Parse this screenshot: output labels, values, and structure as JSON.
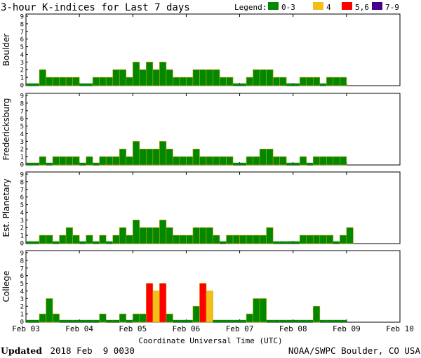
{
  "chart_data": {
    "type": "bar",
    "title": "3-hour K-indices for Last 7 days",
    "legend": {
      "label": "Legend:",
      "items": [
        {
          "label": "0-3",
          "color": "#008800"
        },
        {
          "label": "4",
          "color": "#f4be18"
        },
        {
          "label": "5,6",
          "color": "#ff0000"
        },
        {
          "label": "7-9",
          "color": "#440088"
        }
      ]
    },
    "ytick_labels": [
      "0",
      "1",
      "2",
      "3",
      "4",
      "5",
      "6",
      "7",
      "8",
      "9"
    ],
    "ylim": [
      0,
      9
    ],
    "xlabel": "Coordinate Universal Time (UTC)",
    "xtick_labels": [
      "Feb 03",
      "Feb 04",
      "Feb 05",
      "Feb 06",
      "Feb 07",
      "Feb 08",
      "Feb 09",
      "Feb 10"
    ],
    "intervals_per_day": 8,
    "series": [
      {
        "name": "Boulder",
        "values": [
          0,
          0,
          2,
          1,
          1,
          1,
          1,
          1,
          0,
          0,
          1,
          1,
          1,
          2,
          2,
          1,
          3,
          2,
          3,
          2,
          3,
          2,
          1,
          1,
          1,
          2,
          2,
          2,
          2,
          1,
          1,
          0,
          0,
          1,
          2,
          2,
          2,
          1,
          1,
          0,
          0,
          1,
          1,
          1,
          0,
          1,
          1,
          1
        ]
      },
      {
        "name": "Fredericksburg",
        "values": [
          0,
          0,
          1,
          0,
          1,
          1,
          1,
          1,
          0,
          1,
          0,
          1,
          1,
          1,
          2,
          1,
          3,
          2,
          2,
          2,
          3,
          2,
          1,
          1,
          1,
          2,
          1,
          1,
          1,
          1,
          1,
          0,
          0,
          1,
          1,
          2,
          2,
          1,
          1,
          0,
          0,
          1,
          0,
          1,
          1,
          1,
          1,
          1
        ]
      },
      {
        "name": "Est. Planetary",
        "values": [
          0,
          0,
          1,
          1,
          0,
          1,
          2,
          1,
          0,
          1,
          0,
          1,
          0,
          1,
          2,
          1,
          3,
          2,
          2,
          2,
          3,
          2,
          1,
          1,
          1,
          2,
          2,
          2,
          1,
          0,
          1,
          1,
          1,
          1,
          1,
          1,
          2,
          0,
          0,
          0,
          0,
          1,
          1,
          1,
          1,
          1,
          0,
          1,
          2
        ]
      },
      {
        "name": "College",
        "values": [
          0,
          0,
          1,
          3,
          1,
          0,
          0,
          0,
          0,
          0,
          0,
          1,
          0,
          0,
          1,
          0,
          1,
          1,
          5,
          4,
          5,
          1,
          0,
          0,
          0,
          2,
          5,
          4,
          0,
          0,
          0,
          0,
          0,
          1,
          3,
          3,
          0,
          0,
          0,
          0,
          0,
          0,
          0,
          2,
          0,
          0,
          0,
          0
        ]
      }
    ]
  },
  "footer": {
    "updated_label": "Updated",
    "updated_value": "2018 Feb  9 0030",
    "source": "NOAA/SWPC Boulder, CO USA"
  }
}
